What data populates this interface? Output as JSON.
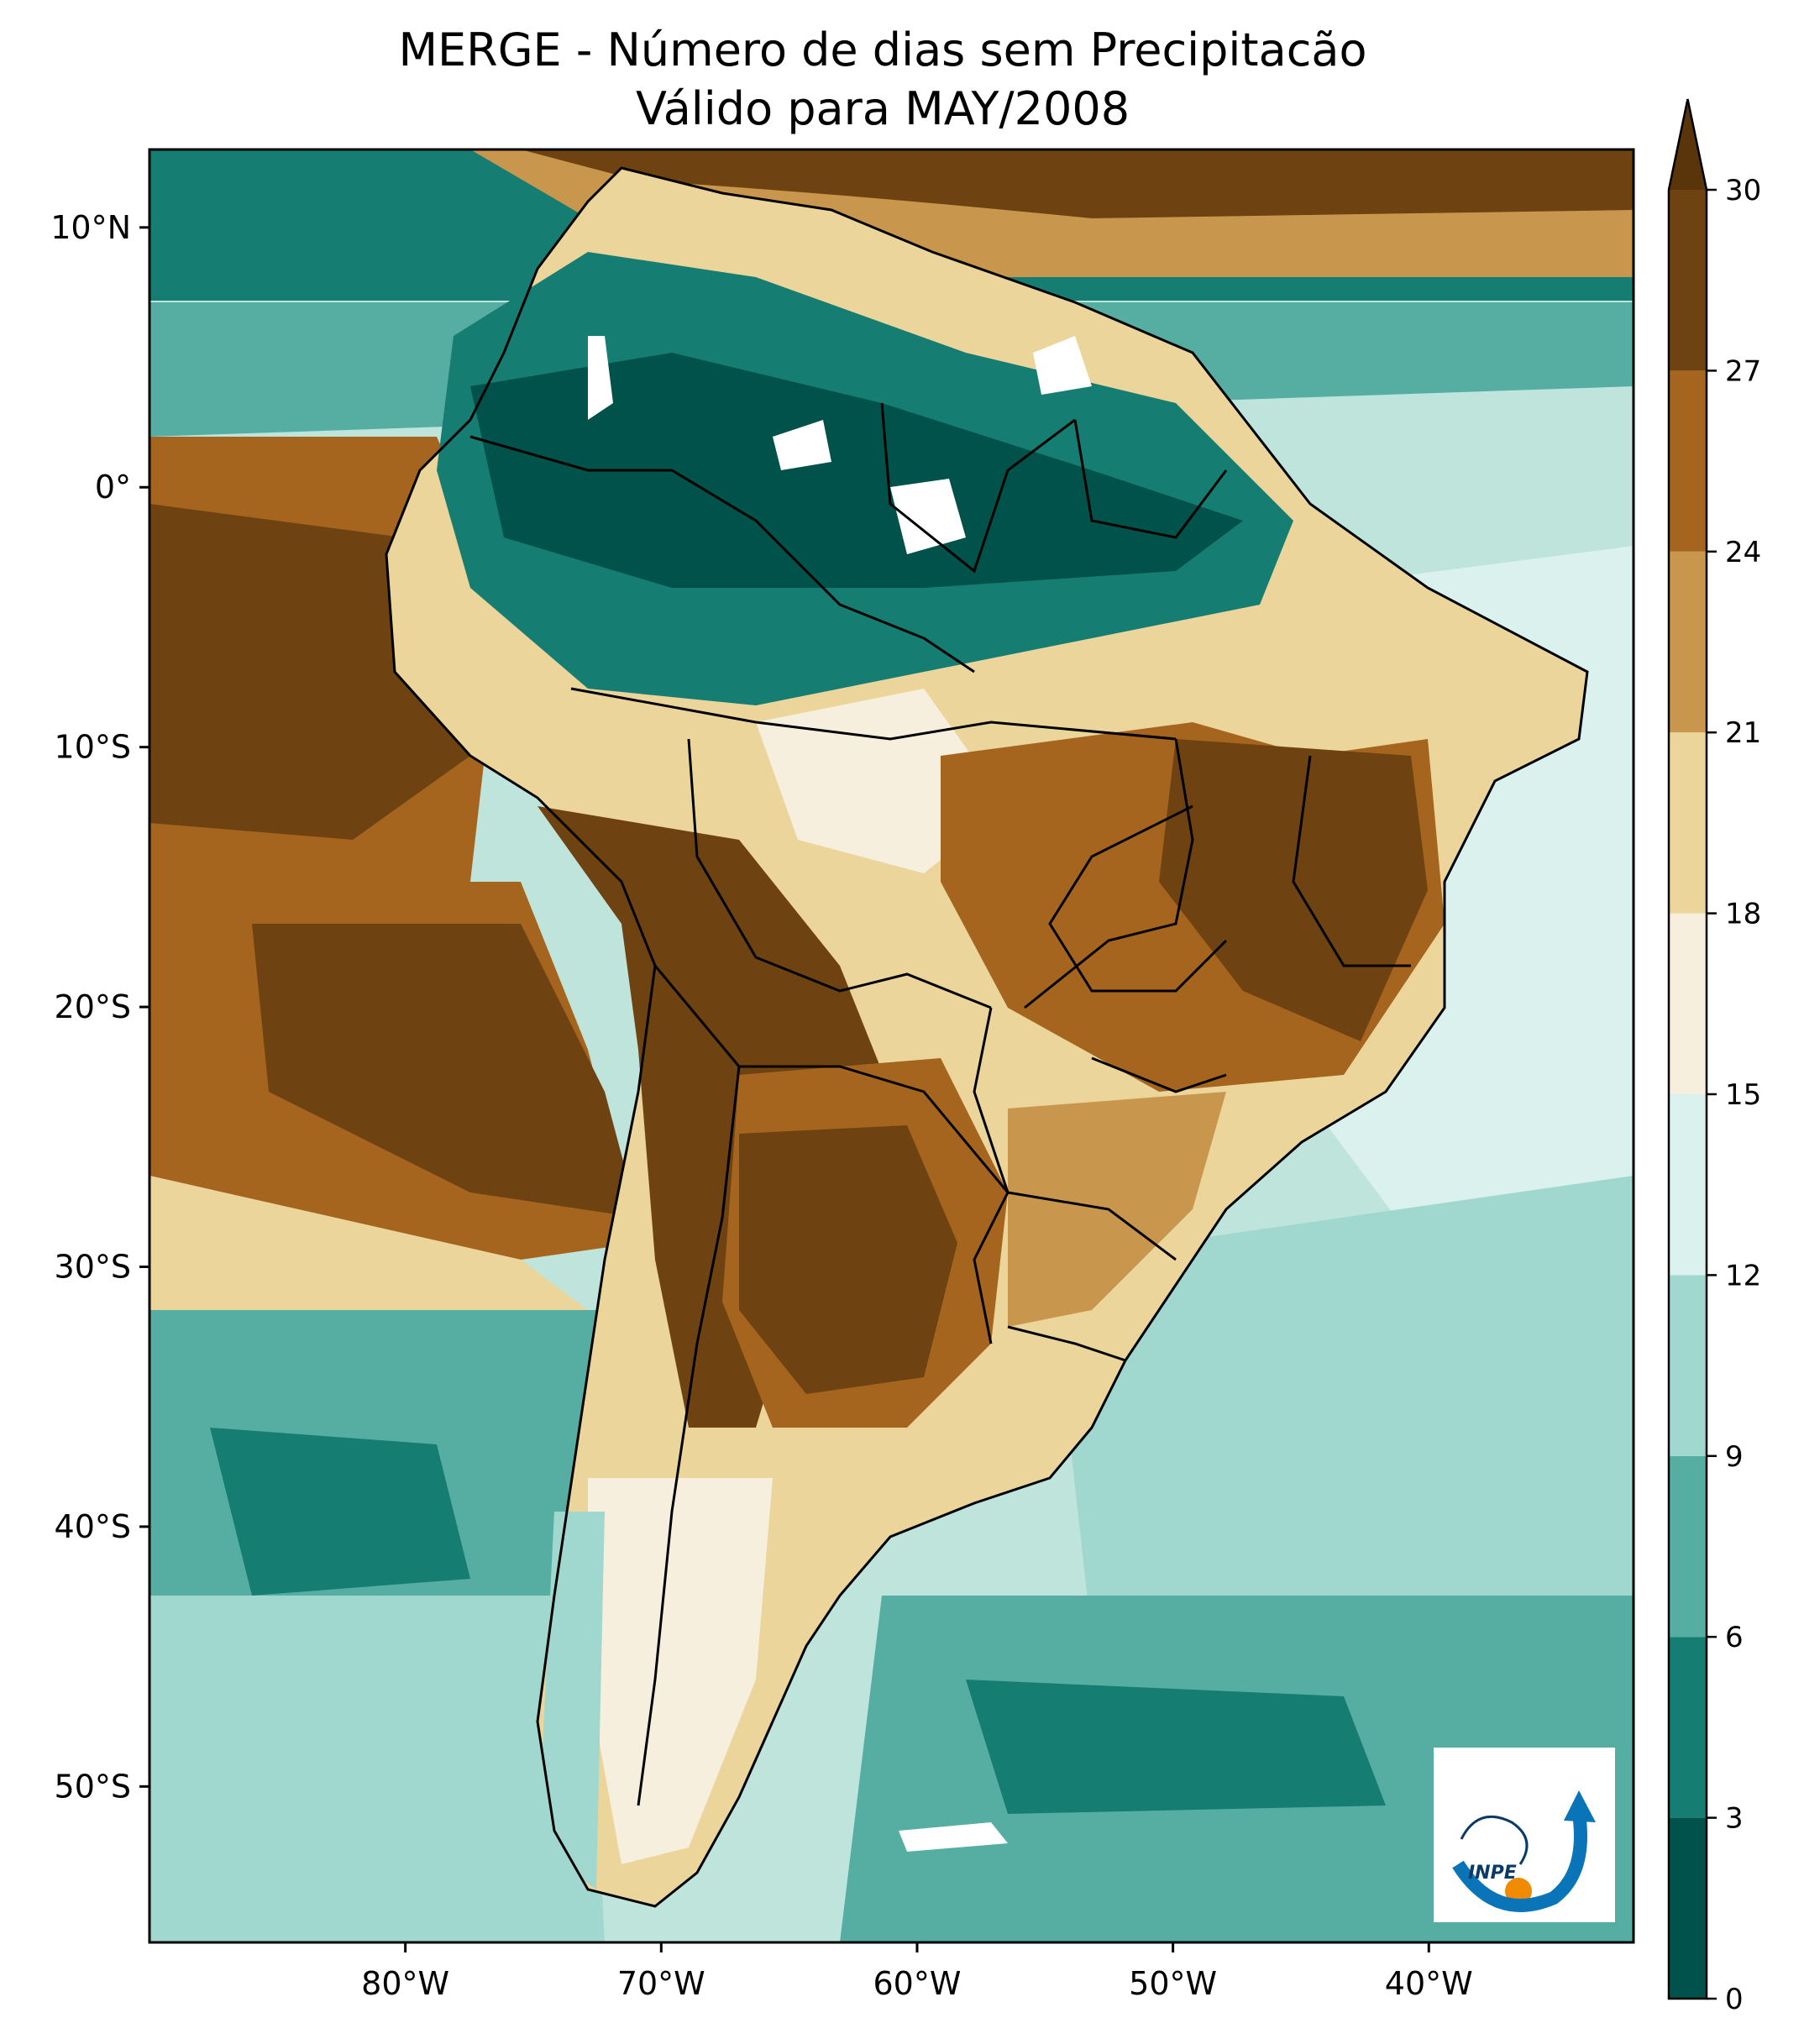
{
  "title": {
    "line1": "MERGE - Número de dias sem Precipitacão",
    "line2": "Válido para MAY/2008"
  },
  "map": {
    "lon_range": [
      -90,
      -32
    ],
    "lat_range": [
      -56,
      13
    ],
    "x_ticks": [
      {
        "lon": -80,
        "label": "80°W"
      },
      {
        "lon": -70,
        "label": "70°W"
      },
      {
        "lon": -60,
        "label": "60°W"
      },
      {
        "lon": -50,
        "label": "50°W"
      },
      {
        "lon": -40,
        "label": "40°W"
      }
    ],
    "y_ticks": [
      {
        "lat": 10,
        "label": "10°N"
      },
      {
        "lat": 0,
        "label": "0°"
      },
      {
        "lat": -10,
        "label": "10°S"
      },
      {
        "lat": -20,
        "label": "20°S"
      },
      {
        "lat": -30,
        "label": "30°S"
      },
      {
        "lat": -40,
        "label": "40°S"
      },
      {
        "lat": -50,
        "label": "50°S"
      }
    ]
  },
  "colorbar": {
    "levels": [
      0,
      3,
      6,
      9,
      12,
      15,
      18,
      21,
      24,
      27,
      30
    ],
    "tick_labels": [
      "0",
      "3",
      "6",
      "9",
      "12",
      "15",
      "18",
      "21",
      "24",
      "27",
      "30"
    ],
    "colors": [
      "#01524a",
      "#167d73",
      "#56aea3",
      "#a0d8cf",
      "#daf1ee",
      "#f6efdd",
      "#ecd59b",
      "#c9964d",
      "#a5651f",
      "#6f4211"
    ],
    "extend": "max",
    "extend_color": "#5a350c"
  },
  "logo": {
    "text": "INPE"
  }
}
